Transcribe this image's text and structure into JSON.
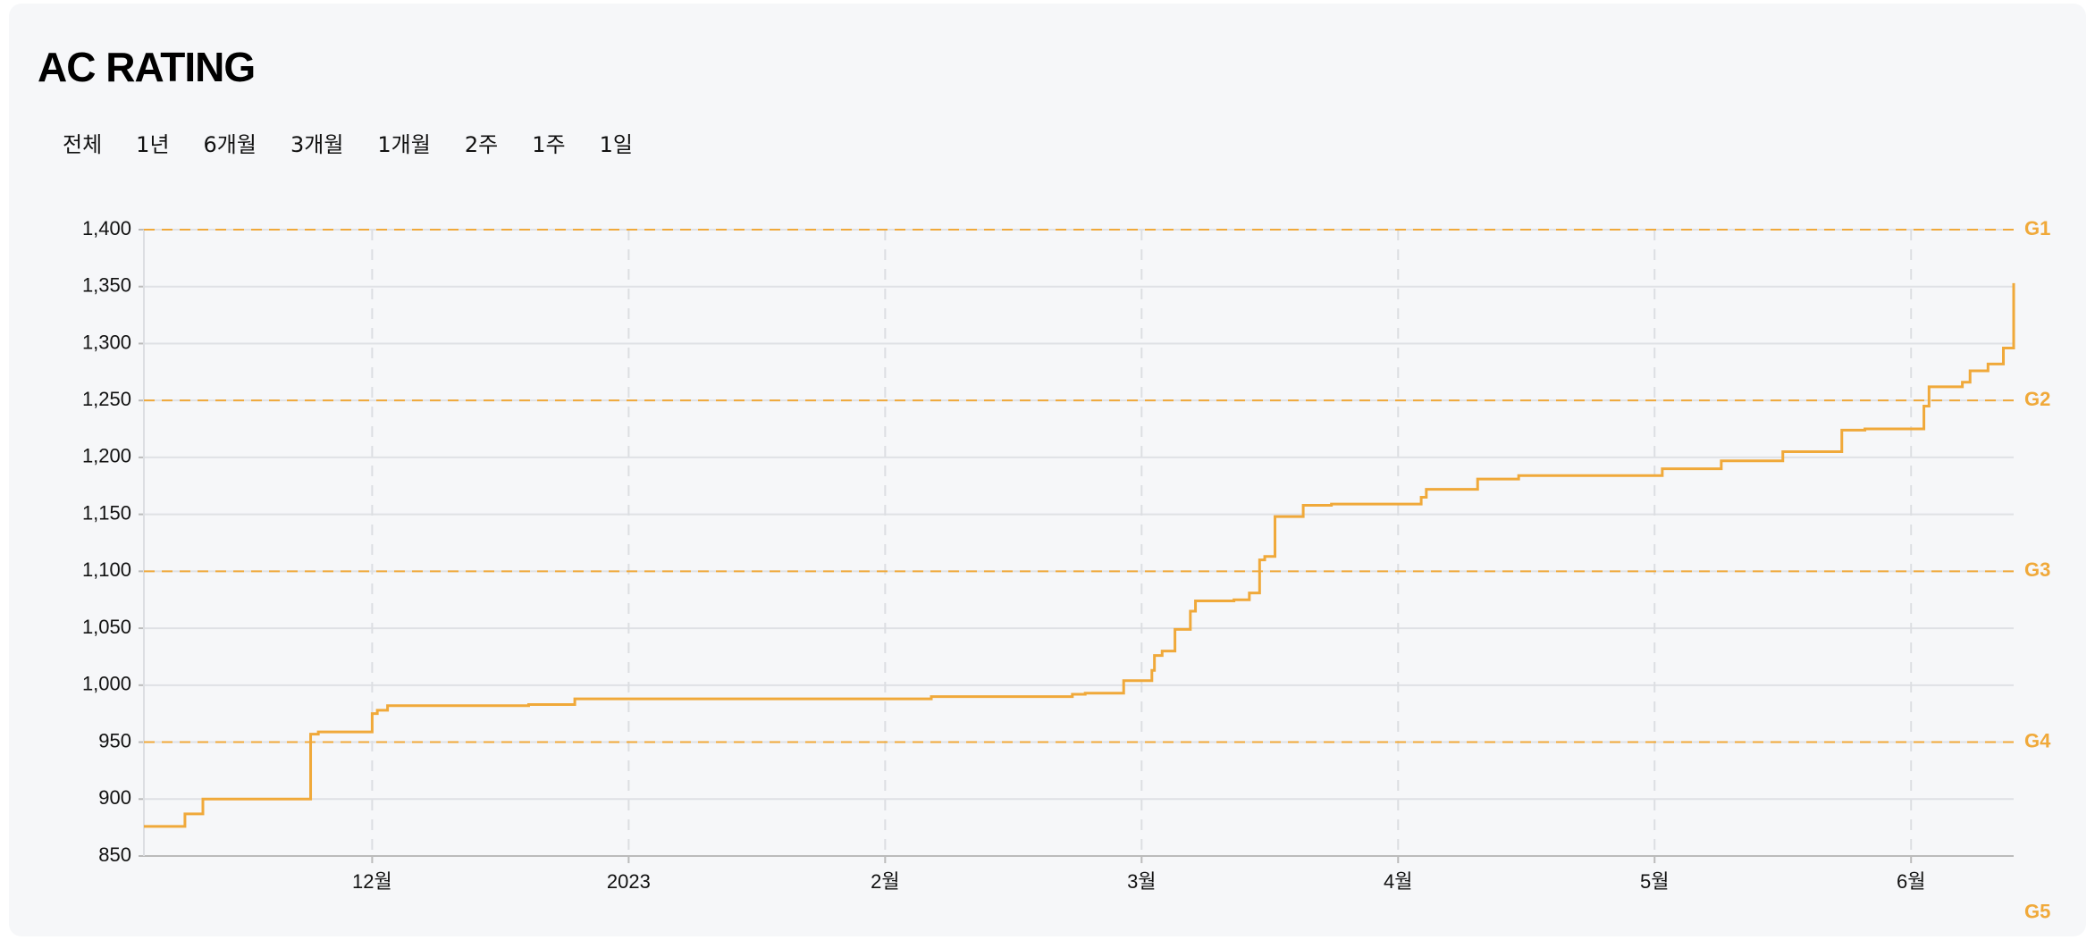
{
  "header": {
    "title": "AC RATING"
  },
  "periods": [
    "전체",
    "1년",
    "6개월",
    "3개월",
    "1개월",
    "2주",
    "1주",
    "1일"
  ],
  "chart_data": {
    "type": "line",
    "step": true,
    "series": [
      {
        "name": "AC Rating",
        "color": "#f0a93a",
        "x": [
          11.11,
          11.27,
          11.34,
          11.35,
          11.76,
          11.79,
          12.0,
          12.02,
          12.06,
          12.61,
          12.79,
          14.18,
          14.73,
          14.78,
          14.93,
          15.04,
          15.05,
          15.08,
          15.13,
          15.19,
          15.21,
          15.36,
          15.42,
          15.46,
          15.48,
          15.52,
          15.63,
          15.74,
          16.09,
          16.11,
          16.31,
          16.47,
          17.03,
          17.26,
          17.5,
          17.73,
          17.82,
          18.05,
          18.07,
          18.2,
          18.23,
          18.3,
          18.36,
          18.4
        ],
        "values": [
          876,
          887,
          900,
          900,
          957,
          959,
          975,
          978,
          982,
          983,
          988,
          990,
          992,
          993,
          1004,
          1013,
          1026,
          1030,
          1049,
          1065,
          1074,
          1075,
          1081,
          1110,
          1113,
          1148,
          1158,
          1159,
          1165,
          1172,
          1181,
          1184,
          1190,
          1197,
          1205,
          1224,
          1225,
          1245,
          1262,
          1266,
          1276,
          1282,
          1296,
          1353
        ]
      }
    ],
    "xlim": [
      11.11,
      18.4
    ],
    "xticks": [
      {
        "value": 12,
        "label": "12월"
      },
      {
        "value": 13,
        "label": "2023"
      },
      {
        "value": 14,
        "label": "2월"
      },
      {
        "value": 15,
        "label": "3월"
      },
      {
        "value": 16,
        "label": "4월"
      },
      {
        "value": 17,
        "label": "5월"
      },
      {
        "value": 18,
        "label": "6월"
      }
    ],
    "ylim": [
      850,
      1400
    ],
    "yticks": [
      850,
      900,
      950,
      {
        "value": 1000,
        "label": "1,000"
      },
      {
        "value": 1050,
        "label": "1,050"
      },
      {
        "value": 1100,
        "label": "1,100"
      },
      {
        "value": 1150,
        "label": "1,150"
      },
      {
        "value": 1200,
        "label": "1,200"
      },
      {
        "value": 1250,
        "label": "1,250"
      },
      {
        "value": 1300,
        "label": "1,300"
      },
      {
        "value": 1350,
        "label": "1,350"
      },
      {
        "value": 1400,
        "label": "1,400"
      }
    ],
    "grid": true,
    "thresholds": [
      {
        "value": 1400,
        "label": "G1"
      },
      {
        "value": 1250,
        "label": "G2"
      },
      {
        "value": 1100,
        "label": "G3"
      },
      {
        "value": 950,
        "label": "G4"
      },
      {
        "value": 800,
        "label": "G5"
      }
    ],
    "threshold_color": "#f0a93a"
  }
}
